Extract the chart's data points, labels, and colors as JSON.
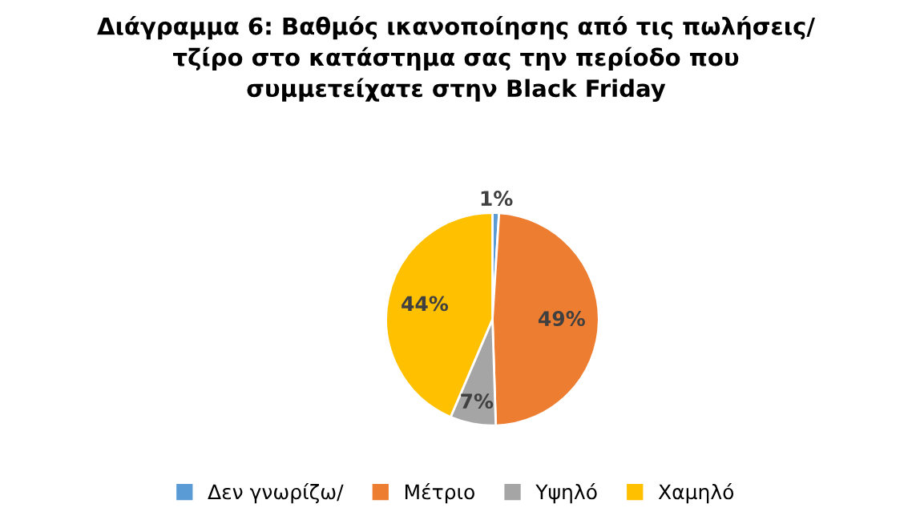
{
  "chart_data": {
    "type": "pie",
    "title": "Διάγραμμα 6: Βαθμός ικανοποίησης από τις πωλήσεις/\nτζίρο στο κατάστημα σας την περίοδο που\nσυμμετείχατε στην Black Friday",
    "categories": [
      "Δεν γνωρίζω/",
      "Μέτριο",
      "Υψηλό",
      "Χαμηλό"
    ],
    "values": [
      1,
      49,
      7,
      44
    ],
    "colors": [
      "#5b9bd5",
      "#ed7d31",
      "#a5a5a5",
      "#ffc000"
    ],
    "value_labels": [
      "1%",
      "49%",
      "7%",
      "44%"
    ],
    "legend": "bottom"
  }
}
